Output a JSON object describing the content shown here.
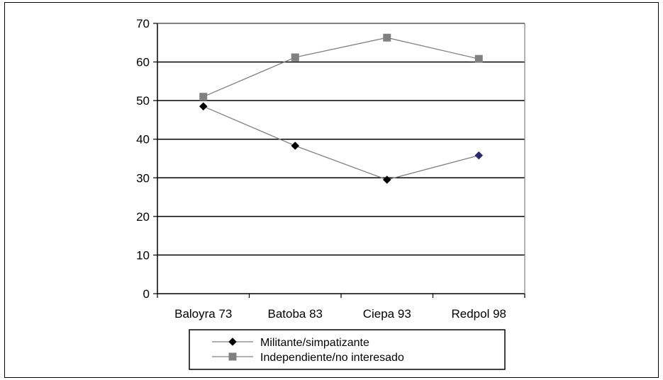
{
  "chart_data": {
    "type": "line",
    "categories": [
      "Baloyra 73",
      "Batoba 83",
      "Ciepa 93",
      "Redpol 98"
    ],
    "series": [
      {
        "name": "Militante/simpatizante",
        "values": [
          48.5,
          38.3,
          29.5,
          35.8
        ],
        "color": "#000000",
        "marker": "diamond",
        "line_color": "#808080"
      },
      {
        "name": "Independiente/no interesado",
        "values": [
          51.0,
          61.2,
          66.3,
          60.8
        ],
        "color": "#808080",
        "marker": "square",
        "line_color": "#808080"
      }
    ],
    "yticks": [
      "0",
      "10",
      "20",
      "30",
      "40",
      "50",
      "60",
      "70"
    ],
    "ylim": [
      0,
      70
    ],
    "grid": true,
    "legend_position": "bottom",
    "title": "",
    "xlabel": "",
    "ylabel": ""
  }
}
